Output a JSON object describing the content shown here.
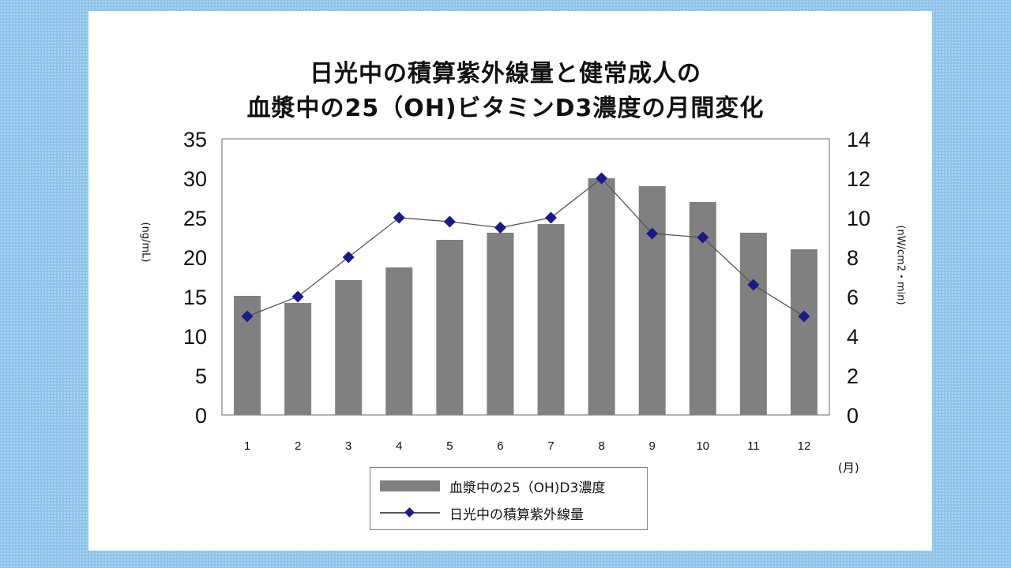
{
  "chart_data": {
    "type": "bar+line",
    "title_lines": [
      "日光中の積算紫外線量と健常成人の",
      "血漿中の25（OH)ビタミンD3濃度の月間変化"
    ],
    "categories": [
      "1",
      "2",
      "3",
      "4",
      "5",
      "6",
      "7",
      "8",
      "9",
      "10",
      "11",
      "12"
    ],
    "x_unit": "(月)",
    "y_left": {
      "label": "(ng/mL)",
      "range": [
        0,
        35
      ],
      "ticks": [
        "0",
        "5",
        "10",
        "15",
        "20",
        "25",
        "30",
        "35"
      ]
    },
    "y_right": {
      "label": "(nW/cm2・min)",
      "range": [
        0,
        14
      ],
      "ticks": [
        "0",
        "2",
        "4",
        "6",
        "8",
        "10",
        "12",
        "14"
      ]
    },
    "series": [
      {
        "name": "血漿中の25（OH)D3濃度",
        "type": "bar",
        "axis": "left",
        "color": "#808080",
        "values": [
          15.1,
          14.2,
          17.1,
          18.7,
          22.2,
          23.1,
          24.2,
          30.0,
          29.0,
          27.0,
          23.1,
          21.0
        ]
      },
      {
        "name": "日光中の積算紫外線量",
        "type": "line",
        "axis": "right",
        "color": "#1a1a8c",
        "line_color": "#555555",
        "marker": "diamond",
        "values": [
          5.0,
          6.0,
          8.0,
          10.0,
          9.8,
          9.5,
          10.0,
          12.0,
          9.2,
          9.0,
          6.6,
          5.0
        ]
      }
    ],
    "legend": {
      "position": "bottom",
      "entries": [
        "血漿中の25（OH)D3濃度",
        "日光中の積算紫外線量"
      ]
    },
    "grid": false
  }
}
